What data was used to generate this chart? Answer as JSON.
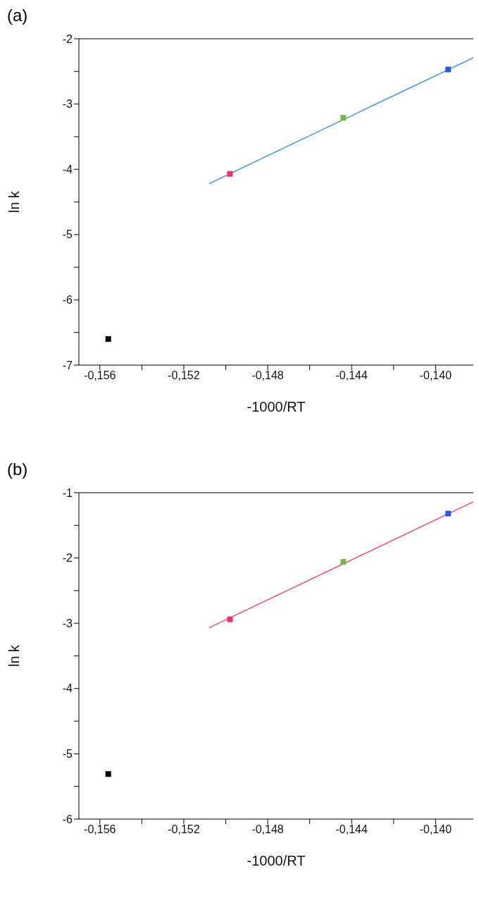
{
  "chart_data": [
    {
      "type": "scatter",
      "title": "(a)",
      "xlabel": "-1000/RT",
      "ylabel": "ln k",
      "xlim": [
        -0.157,
        -0.1382
      ],
      "ylim": [
        -7,
        -2
      ],
      "xticks": [
        {
          "value": -0.156,
          "label": "-0,156"
        },
        {
          "value": -0.154,
          "label": null
        },
        {
          "value": -0.152,
          "label": "-0,152"
        },
        {
          "value": -0.15,
          "label": null
        },
        {
          "value": -0.148,
          "label": "-0,148"
        },
        {
          "value": -0.146,
          "label": null
        },
        {
          "value": -0.144,
          "label": "-0,144"
        },
        {
          "value": -0.142,
          "label": null
        },
        {
          "value": -0.14,
          "label": "-0,140"
        }
      ],
      "yticks": [
        -7,
        {
          "value": -6.5,
          "label": null
        },
        -6,
        {
          "value": -5.5,
          "label": null
        },
        -5,
        {
          "value": -4.5,
          "label": null
        },
        -4,
        {
          "value": -3.5,
          "label": null
        },
        -3,
        {
          "value": -2.5,
          "label": null
        },
        -2
      ],
      "series": [
        {
          "marker": "square",
          "x": [
            -0.1556,
            -0.1498,
            -0.1444,
            -0.1394
          ],
          "values": [
            -6.6,
            -4.07,
            -3.21,
            -2.47
          ],
          "colors": [
            "#000000",
            "#e8336a",
            "#7cb342",
            "#2a5bd7"
          ]
        },
        {
          "type": "line",
          "x": [
            -0.1508,
            -0.1382
          ],
          "values": [
            -4.22,
            -2.29
          ],
          "color": "#4a90e2",
          "line_style": "solid"
        }
      ]
    },
    {
      "type": "scatter",
      "title": "(b)",
      "xlabel": "-1000/RT",
      "ylabel": "ln k",
      "xlim": [
        -0.157,
        -0.1382
      ],
      "ylim": [
        -6,
        -1
      ],
      "xticks": [
        {
          "value": -0.156,
          "label": "-0,156"
        },
        {
          "value": -0.154,
          "label": null
        },
        {
          "value": -0.152,
          "label": "-0,152"
        },
        {
          "value": -0.15,
          "label": null
        },
        {
          "value": -0.148,
          "label": "-0,148"
        },
        {
          "value": -0.146,
          "label": null
        },
        {
          "value": -0.144,
          "label": "-0,144"
        },
        {
          "value": -0.142,
          "label": null
        },
        {
          "value": -0.14,
          "label": "-0,140"
        }
      ],
      "yticks": [
        -6,
        {
          "value": -5.5,
          "label": null
        },
        -5,
        {
          "value": -4.5,
          "label": null
        },
        -4,
        {
          "value": -3.5,
          "label": null
        },
        -3,
        {
          "value": -2.5,
          "label": null
        },
        -2,
        {
          "value": -1.5,
          "label": null
        },
        -1
      ],
      "series": [
        {
          "marker": "square",
          "x": [
            -0.1556,
            -0.1498,
            -0.1444,
            -0.1394
          ],
          "values": [
            -5.31,
            -2.94,
            -2.06,
            -1.32
          ],
          "colors": [
            "#000000",
            "#e8336a",
            "#7cb342",
            "#2a5bd7"
          ]
        },
        {
          "type": "line",
          "x": [
            -0.1508,
            -0.1382
          ],
          "values": [
            -3.07,
            -1.14
          ],
          "color": "#e8507a",
          "line_style": "solid"
        }
      ]
    }
  ]
}
